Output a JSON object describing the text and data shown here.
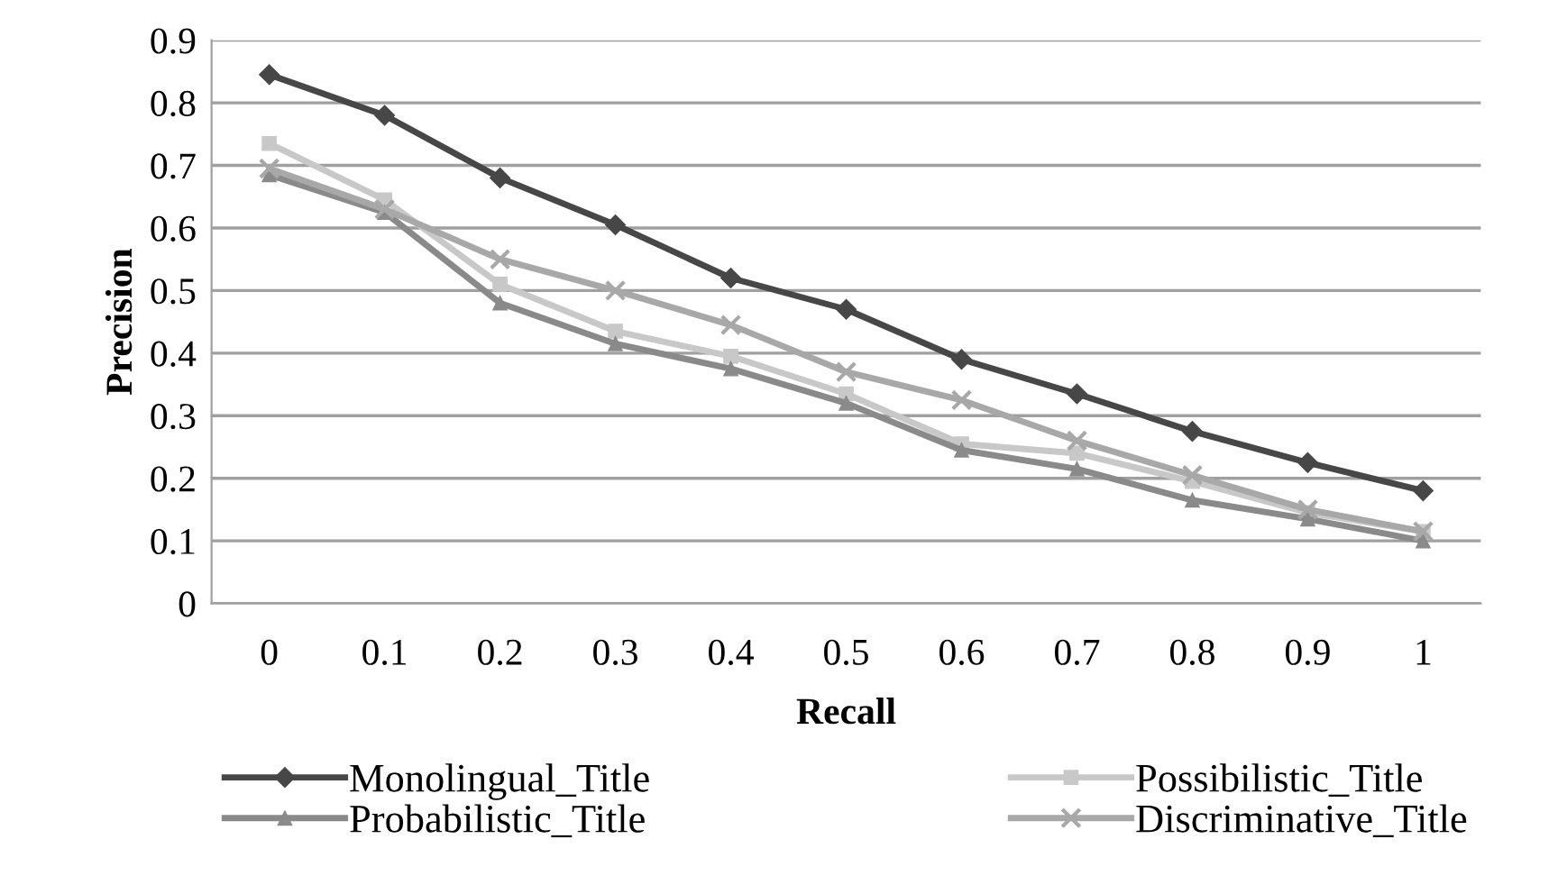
{
  "chart_data": {
    "type": "line",
    "xlabel": "Recall",
    "ylabel": "Precision",
    "categories": [
      "0",
      "0.1",
      "0.2",
      "0.3",
      "0.4",
      "0.5",
      "0.6",
      "0.7",
      "0.8",
      "0.9",
      "1"
    ],
    "series": [
      {
        "name": "Monolingual_Title",
        "color": "#474747",
        "marker": "diamond",
        "values": [
          0.845,
          0.78,
          0.68,
          0.605,
          0.52,
          0.47,
          0.39,
          0.335,
          0.275,
          0.225,
          0.18
        ]
      },
      {
        "name": "Possibilistic_Title",
        "color": "#c8c8c8",
        "marker": "square",
        "values": [
          0.735,
          0.645,
          0.51,
          0.435,
          0.395,
          0.335,
          0.255,
          0.24,
          0.195,
          0.145,
          0.115
        ]
      },
      {
        "name": "Probabilistic_Title",
        "color": "#8a8a8a",
        "marker": "triangle",
        "values": [
          0.685,
          0.625,
          0.48,
          0.415,
          0.375,
          0.32,
          0.245,
          0.215,
          0.165,
          0.135,
          0.1
        ]
      },
      {
        "name": "Discriminative_Title",
        "color": "#a8a8a8",
        "marker": "cross",
        "values": [
          0.695,
          0.63,
          0.55,
          0.5,
          0.445,
          0.37,
          0.325,
          0.26,
          0.205,
          0.15,
          0.115
        ]
      }
    ],
    "ylim": [
      0,
      0.9
    ],
    "yticks": [
      0,
      0.1,
      0.2,
      0.3,
      0.4,
      0.5,
      0.6,
      0.7,
      0.8,
      0.9
    ],
    "grid": "y",
    "legend": "bottom",
    "line_style": "solid"
  }
}
